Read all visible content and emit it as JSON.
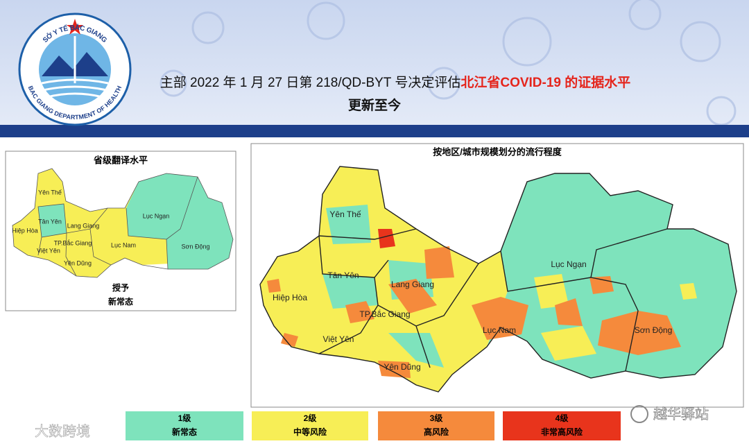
{
  "header": {
    "logo_top": "SỞ Y TẾ BẮC GIANG",
    "logo_bottom": "BAC GIANG DEPARTMENT OF HEALTH",
    "title_prefix": "主部 2022 年 1 月 27 日第 218/QD-BYT 号决定评估",
    "title_highlight": "北江省COVID-19 的证据水平",
    "subtitle": "更新至今"
  },
  "left_panel": {
    "title": "省级翻译水平",
    "districts": [
      "Yên Thế",
      "Tân Yên",
      "Lang Giang",
      "Lục Ngạn",
      "Hiệp Hòa",
      "TP.Bắc Giang",
      "Việt Yên",
      "Lục Nam",
      "Sơn Động",
      "Yên Dũng"
    ],
    "status_label": "授予",
    "status": "新常态"
  },
  "right_panel": {
    "title": "按地区/城市规模划分的流行程度",
    "districts": [
      "Yên Thế",
      "Tân Yên",
      "Lang Giang",
      "Lục Ngạn",
      "Hiệp Hòa",
      "TP.Bắc Giang",
      "Việt Yên",
      "Lục Nam",
      "Sơn Động",
      "Yên Dũng"
    ]
  },
  "legend": [
    {
      "level": "1级",
      "label": "新常态"
    },
    {
      "level": "2级",
      "label": "中等风险"
    },
    {
      "level": "3级",
      "label": "高风险"
    },
    {
      "level": "4级",
      "label": "非常高风险"
    }
  ],
  "watermarks": [
    "大数跨境",
    "越华驿站"
  ]
}
